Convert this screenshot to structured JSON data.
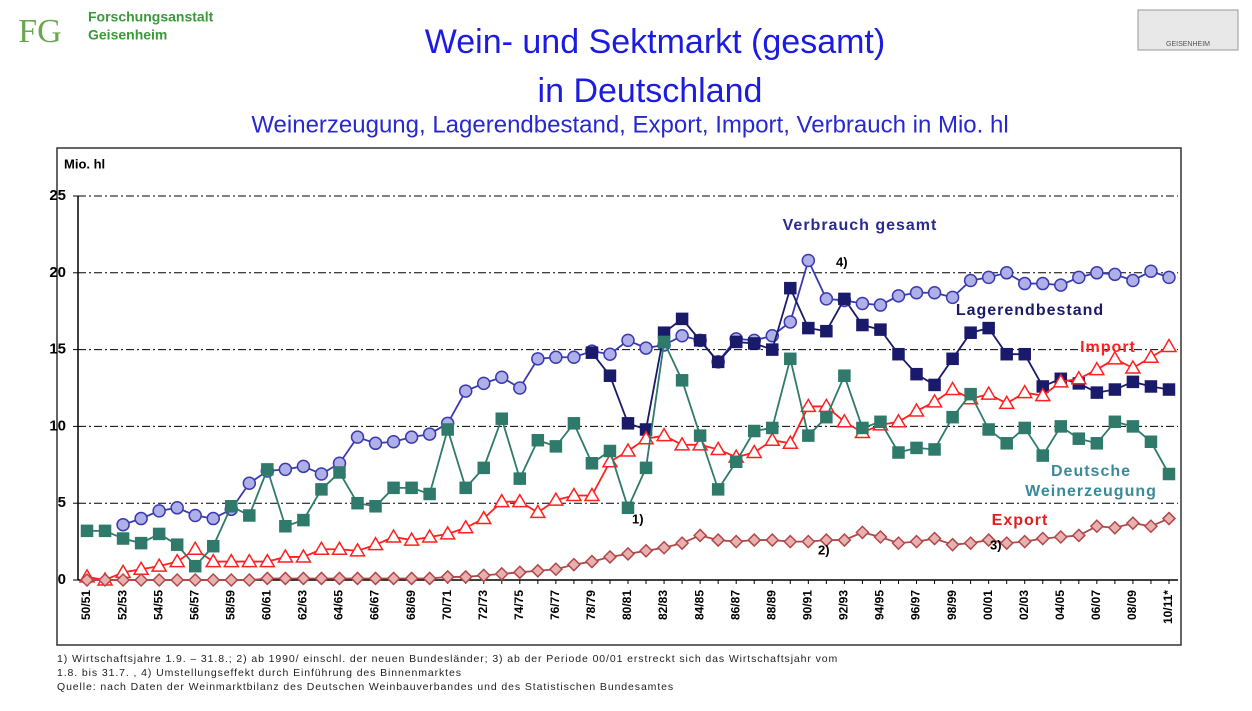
{
  "header": {
    "logo": "FG",
    "institution": [
      "Forschungsanstalt",
      "Geisenheim"
    ],
    "right_logo": "GEISENHEIM"
  },
  "chart_data": {
    "type": "line",
    "title": [
      "Wein- und Sektmarkt (gesamt)",
      "in Deutschland"
    ],
    "subtitle": "Weinerzeugung,  Lagerendbestand,  Export, Import, Verbrauch  in Mio. hl",
    "y_label": "Mio. hl",
    "categories": [
      "50/51",
      null,
      "52/53",
      null,
      "54/55",
      null,
      "56/57",
      null,
      "58/59",
      null,
      "60/61",
      null,
      "62/63",
      null,
      "64/65",
      null,
      "66/67",
      null,
      "68/69",
      null,
      "70/71",
      null,
      "72/73",
      null,
      "74/75",
      null,
      "76/77",
      null,
      "78/79",
      null,
      "80/81",
      null,
      "82/83",
      null,
      "84/85",
      null,
      "86/87",
      null,
      "88/89",
      null,
      "90/91",
      null,
      "92/93",
      null,
      "94/95",
      null,
      "96/97",
      null,
      "98/99",
      null,
      "00/01",
      null,
      "02/03",
      null,
      "04/05",
      null,
      "06/07",
      null,
      "08/09",
      null,
      "10/11*"
    ],
    "ylim": [
      0,
      25
    ],
    "yticks": [
      0,
      5,
      10,
      15,
      20,
      25
    ],
    "grid": true,
    "series": [
      {
        "name": "Verbrauch gesamt",
        "color": "#3a3ab0",
        "marker": "circle",
        "values": [
          null,
          null,
          3.6,
          4.0,
          4.5,
          4.7,
          4.2,
          4.0,
          4.6,
          6.3,
          7.1,
          7.2,
          7.4,
          6.9,
          7.6,
          9.3,
          8.9,
          9.0,
          9.3,
          9.5,
          10.2,
          12.3,
          12.8,
          13.2,
          12.5,
          14.4,
          14.5,
          14.5,
          14.9,
          14.7,
          15.6,
          15.1,
          15.3,
          15.9,
          15.6,
          14.2,
          15.7,
          15.6,
          15.9,
          16.8,
          20.8,
          18.3,
          18.2,
          18.0,
          17.9,
          18.5,
          18.7,
          18.7,
          18.4,
          19.5,
          19.7,
          20.0,
          19.3,
          19.3,
          19.2,
          19.7,
          20.0,
          19.9,
          19.5,
          20.1,
          19.7
        ]
      },
      {
        "name": "Lagerendbestand",
        "color": "#1a1a6a",
        "marker": "square",
        "values": [
          null,
          null,
          null,
          null,
          null,
          null,
          null,
          null,
          null,
          null,
          null,
          null,
          null,
          null,
          null,
          null,
          null,
          null,
          null,
          null,
          null,
          null,
          null,
          null,
          null,
          null,
          null,
          null,
          14.8,
          13.3,
          10.2,
          9.8,
          16.1,
          17.0,
          15.6,
          14.2,
          15.5,
          15.4,
          15.0,
          19.0,
          16.4,
          16.2,
          18.3,
          16.6,
          16.3,
          14.7,
          13.4,
          12.7,
          14.4,
          16.1,
          16.4,
          14.7,
          14.7,
          12.6,
          13.1,
          12.8,
          12.2,
          12.4,
          12.9,
          12.6,
          12.4
        ]
      },
      {
        "name": "Import",
        "color": "#ff2020",
        "marker": "triangle",
        "values": [
          0.2,
          0,
          0.5,
          0.7,
          0.9,
          1.2,
          2.0,
          1.2,
          1.2,
          1.2,
          1.2,
          1.5,
          1.5,
          2.0,
          2.0,
          1.9,
          2.3,
          2.8,
          2.6,
          2.8,
          3.0,
          3.4,
          4.0,
          5.1,
          5.1,
          4.4,
          5.2,
          5.5,
          5.5,
          7.7,
          8.4,
          9.2,
          9.4,
          8.8,
          8.8,
          8.5,
          8.0,
          8.3,
          9.1,
          8.9,
          11.3,
          11.3,
          10.3,
          9.6,
          10.1,
          10.3,
          11.0,
          11.6,
          12.4,
          11.8,
          12.1,
          11.5,
          12.2,
          12.0,
          12.9,
          13.1,
          13.7,
          14.4,
          13.8,
          14.5,
          15.2
        ]
      },
      {
        "name": "Deutsche Weinerzeugung",
        "color": "#2f7a6a",
        "marker": "square",
        "values": [
          3.2,
          3.2,
          2.7,
          2.4,
          3.0,
          2.3,
          0.9,
          2.2,
          4.8,
          4.2,
          7.2,
          3.5,
          3.9,
          5.9,
          7.0,
          5.0,
          4.8,
          6.0,
          6.0,
          5.6,
          9.8,
          6.0,
          7.3,
          10.5,
          6.6,
          9.1,
          8.7,
          10.2,
          7.6,
          8.4,
          4.7,
          7.3,
          15.5,
          13.0,
          9.4,
          5.9,
          7.7,
          9.7,
          9.9,
          14.4,
          9.4,
          10.6,
          13.3,
          9.9,
          10.3,
          8.3,
          8.6,
          8.5,
          10.6,
          12.1,
          9.8,
          8.9,
          9.9,
          8.1,
          10.0,
          9.2,
          8.9,
          10.3,
          10.0,
          9.0,
          6.9
        ]
      },
      {
        "name": "Export",
        "color": "#b04848",
        "marker": "diamond",
        "values": [
          0,
          0,
          0,
          0,
          0,
          0,
          0,
          0,
          0,
          0,
          0.1,
          0.1,
          0.1,
          0.1,
          0.1,
          0.1,
          0.1,
          0.1,
          0.1,
          0.1,
          0.2,
          0.2,
          0.3,
          0.4,
          0.5,
          0.6,
          0.7,
          1.0,
          1.2,
          1.5,
          1.7,
          1.9,
          2.1,
          2.4,
          2.9,
          2.6,
          2.5,
          2.6,
          2.6,
          2.5,
          2.5,
          2.6,
          2.6,
          3.1,
          2.8,
          2.4,
          2.5,
          2.7,
          2.3,
          2.4,
          2.6,
          2.4,
          2.5,
          2.7,
          2.8,
          2.9,
          3.5,
          3.4,
          3.7,
          3.5,
          4.0
        ]
      }
    ],
    "annotations": [
      "1)",
      "2)",
      "3)",
      "4)"
    ]
  },
  "footnotes": [
    "1) Wirtschaftsjahre 1.9. – 31.8.;  2) ab 1990/ einschl. der neuen Bundesländer; 3) ab der Periode 00/01 erstreckt sich das Wirtschaftsjahr vom",
    "1.8. bis 31.7. , 4) Umstellungseffekt durch Einführung des Binnenmarktes",
    "Quelle: nach Daten der Weinmarktbilanz des Deutschen Weinbauverbandes und des Statistischen Bundesamtes"
  ]
}
